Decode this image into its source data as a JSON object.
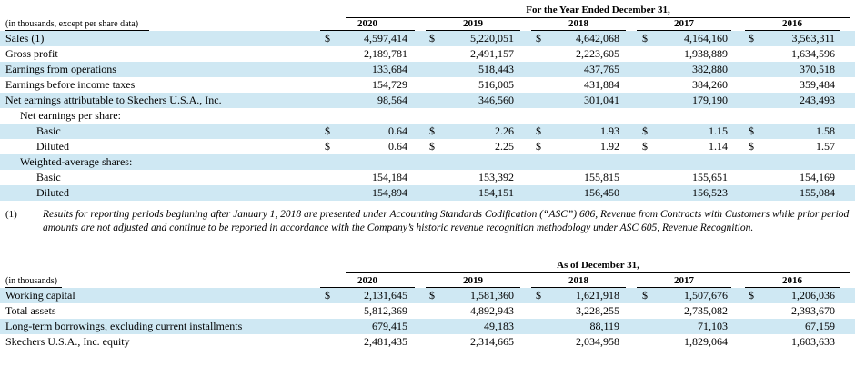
{
  "table1": {
    "period_header": "For the Year Ended December 31,",
    "unit_note": "(in thousands, except per share data)",
    "years": [
      "2020",
      "2019",
      "2018",
      "2017",
      "2016"
    ],
    "rows": [
      {
        "label": "Sales (1)",
        "indent": 0,
        "shade": true,
        "dollar": true,
        "values": [
          "4,597,414",
          "5,220,051",
          "4,642,068",
          "4,164,160",
          "3,563,311"
        ]
      },
      {
        "label": "Gross profit",
        "indent": 0,
        "shade": false,
        "dollar": false,
        "values": [
          "2,189,781",
          "2,491,157",
          "2,223,605",
          "1,938,889",
          "1,634,596"
        ]
      },
      {
        "label": "Earnings from operations",
        "indent": 0,
        "shade": true,
        "dollar": false,
        "values": [
          "133,684",
          "518,443",
          "437,765",
          "382,880",
          "370,518"
        ]
      },
      {
        "label": "Earnings before income taxes",
        "indent": 0,
        "shade": false,
        "dollar": false,
        "values": [
          "154,729",
          "516,005",
          "431,884",
          "384,260",
          "359,484"
        ]
      },
      {
        "label": "Net earnings attributable to Skechers U.S.A., Inc.",
        "indent": 0,
        "shade": true,
        "dollar": false,
        "values": [
          "98,564",
          "346,560",
          "301,041",
          "179,190",
          "243,493"
        ]
      },
      {
        "label": "Net earnings per share:",
        "indent": 1,
        "shade": false,
        "dollar": false,
        "values": []
      },
      {
        "label": "Basic",
        "indent": 2,
        "shade": true,
        "dollar": true,
        "values": [
          "0.64",
          "2.26",
          "1.93",
          "1.15",
          "1.58"
        ]
      },
      {
        "label": "Diluted",
        "indent": 2,
        "shade": false,
        "dollar": true,
        "values": [
          "0.64",
          "2.25",
          "1.92",
          "1.14",
          "1.57"
        ]
      },
      {
        "label": "Weighted-average shares:",
        "indent": 1,
        "shade": true,
        "dollar": false,
        "values": []
      },
      {
        "label": "Basic",
        "indent": 2,
        "shade": false,
        "dollar": false,
        "values": [
          "154,184",
          "153,392",
          "155,815",
          "155,651",
          "154,169"
        ]
      },
      {
        "label": "Diluted",
        "indent": 2,
        "shade": true,
        "dollar": false,
        "values": [
          "154,894",
          "154,151",
          "156,450",
          "156,523",
          "155,084"
        ]
      }
    ]
  },
  "footnote": {
    "marker": "(1)",
    "text": "Results for reporting periods beginning after January 1, 2018 are presented under Accounting Standards Codification (“ASC”) 606, Revenue from Contracts with Customers while prior period amounts are not adjusted and continue to be reported in accordance with the Company’s historic revenue recognition methodology under ASC 605, Revenue Recognition."
  },
  "table2": {
    "period_header": "As of December 31,",
    "unit_note": "(in thousands)",
    "years": [
      "2020",
      "2019",
      "2018",
      "2017",
      "2016"
    ],
    "rows": [
      {
        "label": "Working capital",
        "shade": true,
        "dollar": true,
        "values": [
          "2,131,645",
          "1,581,360",
          "1,621,918",
          "1,507,676",
          "1,206,036"
        ]
      },
      {
        "label": "Total assets",
        "shade": false,
        "dollar": false,
        "values": [
          "5,812,369",
          "4,892,943",
          "3,228,255",
          "2,735,082",
          "2,393,670"
        ]
      },
      {
        "label": "Long-term borrowings, excluding current installments",
        "shade": true,
        "dollar": false,
        "values": [
          "679,415",
          "49,183",
          "88,119",
          "71,103",
          "67,159"
        ]
      },
      {
        "label": "Skechers U.S.A., Inc. equity",
        "shade": false,
        "dollar": false,
        "values": [
          "2,481,435",
          "2,314,665",
          "2,034,958",
          "1,829,064",
          "1,603,633"
        ]
      }
    ]
  },
  "dollar_sign": "$"
}
